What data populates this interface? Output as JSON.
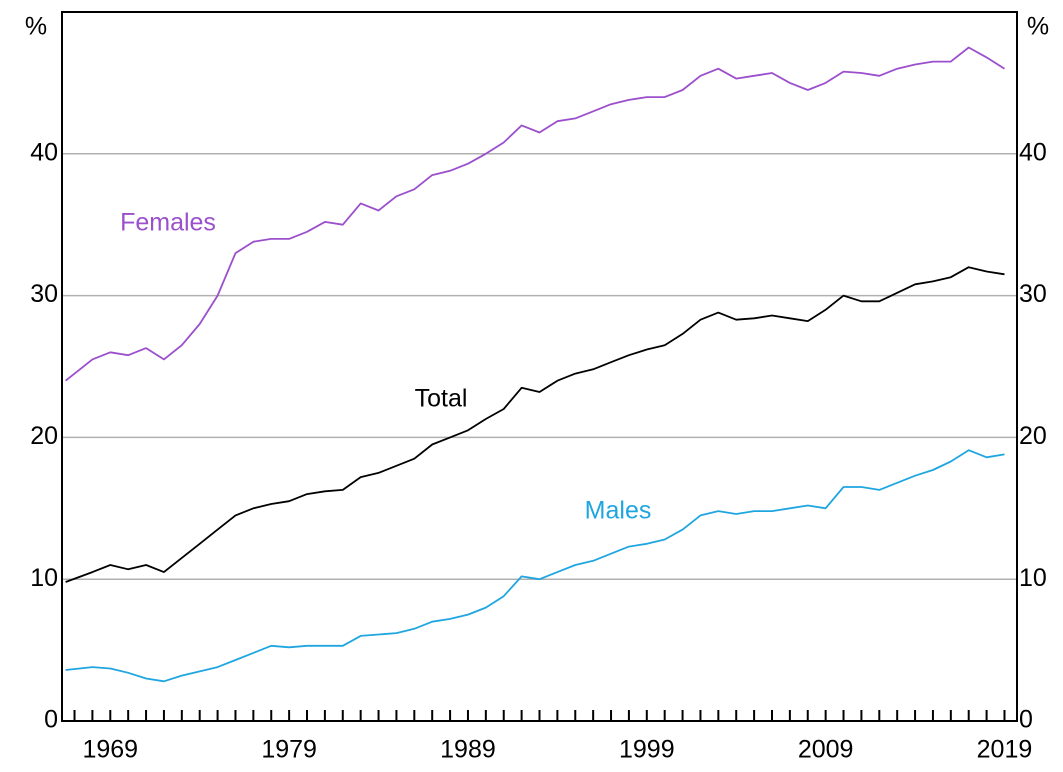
{
  "chart_data": {
    "type": "line",
    "x": [
      1966.5,
      1968,
      1969,
      1970,
      1971,
      1972,
      1973,
      1974,
      1975,
      1976,
      1977,
      1978,
      1979,
      1980,
      1981,
      1982,
      1983,
      1984,
      1985,
      1986,
      1987,
      1988,
      1989,
      1990,
      1991,
      1992,
      1993,
      1994,
      1995,
      1996,
      1997,
      1998,
      1999,
      2000,
      2001,
      2002,
      2003,
      2004,
      2005,
      2006,
      2007,
      2008,
      2009,
      2010,
      2011,
      2012,
      2013,
      2014,
      2015,
      2016,
      2017,
      2018,
      2019
    ],
    "series": [
      {
        "name": "Females",
        "color": "#9b4fcc",
        "values": [
          24,
          25.5,
          26,
          25.8,
          26.3,
          25.5,
          26.5,
          28,
          30,
          33,
          33.8,
          34,
          34,
          34.5,
          35.2,
          35,
          36.5,
          36,
          37,
          37.5,
          38.5,
          38.8,
          39.3,
          40,
          40.8,
          42,
          41.5,
          42.3,
          42.5,
          43,
          43.5,
          43.8,
          44,
          44,
          44.5,
          45.5,
          46,
          45.3,
          45.5,
          45.7,
          45,
          44.5,
          45,
          45.8,
          45.7,
          45.5,
          46,
          46.3,
          46.5,
          46.5,
          47.5,
          46.8,
          46
        ]
      },
      {
        "name": "Total",
        "color": "#000000",
        "values": [
          9.8,
          10.5,
          11,
          10.7,
          11,
          10.5,
          11.5,
          12.5,
          13.5,
          14.5,
          15,
          15.3,
          15.5,
          16,
          16.2,
          16.3,
          17.2,
          17.5,
          18,
          18.5,
          19.5,
          20,
          20.5,
          21.3,
          22,
          23.5,
          23.2,
          24,
          24.5,
          24.8,
          25.3,
          25.8,
          26.2,
          26.5,
          27.3,
          28.3,
          28.8,
          28.3,
          28.4,
          28.6,
          28.4,
          28.2,
          29,
          30,
          29.6,
          29.6,
          30.2,
          30.8,
          31,
          31.3,
          32,
          31.7,
          31.5
        ]
      },
      {
        "name": "Males",
        "color": "#1fa6e0",
        "values": [
          3.6,
          3.8,
          3.7,
          3.4,
          3,
          2.8,
          3.2,
          3.5,
          3.8,
          4.3,
          4.8,
          5.3,
          5.2,
          5.3,
          5.3,
          5.3,
          6,
          6.1,
          6.2,
          6.5,
          7,
          7.2,
          7.5,
          8,
          8.8,
          10.2,
          10,
          10.5,
          11,
          11.3,
          11.8,
          12.3,
          12.5,
          12.8,
          13.5,
          14.5,
          14.8,
          14.6,
          14.8,
          14.8,
          15,
          15.2,
          15,
          16.5,
          16.5,
          16.3,
          16.8,
          17.3,
          17.7,
          18.3,
          19.1,
          18.6,
          18.8
        ]
      }
    ],
    "xlim": [
      1966.3,
      2019.7
    ],
    "xticks": [
      1969,
      1979,
      1989,
      1999,
      2009,
      2019
    ],
    "xminorticks": [
      1967,
      1968,
      1969,
      1970,
      1971,
      1972,
      1973,
      1974,
      1975,
      1976,
      1977,
      1978,
      1979,
      1980,
      1981,
      1982,
      1983,
      1984,
      1985,
      1986,
      1987,
      1988,
      1989,
      1990,
      1991,
      1992,
      1993,
      1994,
      1995,
      1996,
      1997,
      1998,
      1999,
      2000,
      2001,
      2002,
      2003,
      2004,
      2005,
      2006,
      2007,
      2008,
      2009,
      2010,
      2011,
      2012,
      2013,
      2014,
      2015,
      2016,
      2017,
      2018,
      2019
    ],
    "ylim": [
      0,
      50
    ],
    "yticks": [
      0,
      10,
      20,
      30,
      40
    ],
    "y_unit": "%",
    "y2lim": [
      0,
      50
    ],
    "y2ticks": [
      0,
      10,
      20,
      30,
      40
    ],
    "y2_unit": "%",
    "grid": true
  }
}
